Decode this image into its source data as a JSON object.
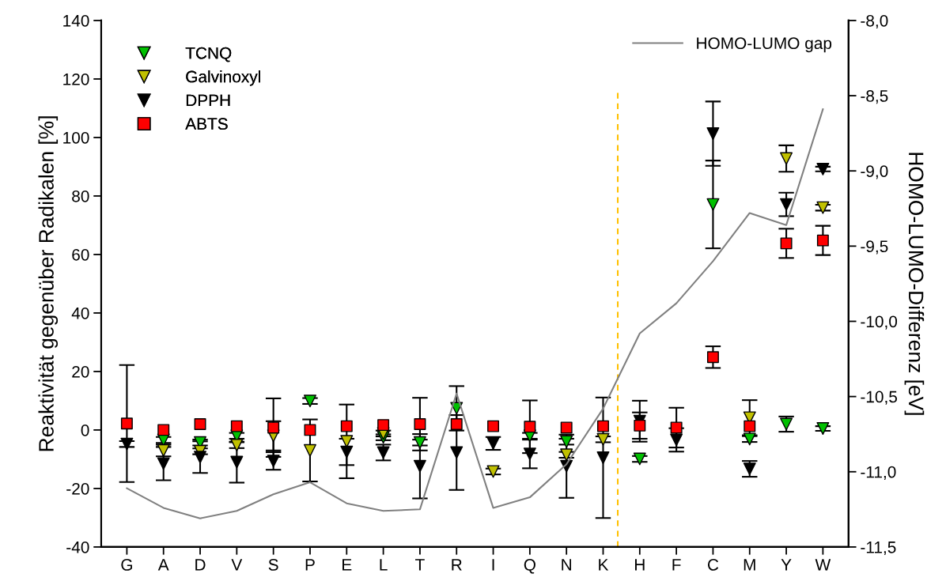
{
  "chart_data": {
    "type": "scatter",
    "ylabel": "Reaktivität gegenüber Radikalen [%]",
    "y2label": "HOMO-LUMO-Differenz [eV]",
    "categories": [
      "G",
      "A",
      "D",
      "V",
      "S",
      "P",
      "E",
      "L",
      "T",
      "R",
      "I",
      "Q",
      "N",
      "K",
      "H",
      "F",
      "C",
      "M",
      "Y",
      "W"
    ],
    "series": [
      {
        "name": "TCNQ",
        "marker": "triangle",
        "color": "#00c000",
        "values": [
          null,
          -3.4,
          -4.3,
          -2,
          null,
          9.9,
          null,
          -2.5,
          -4.3,
          7.4,
          null,
          -2,
          -4,
          null,
          -9.9,
          null,
          77.1,
          -3.1,
          2,
          0.5
        ],
        "errors": [
          null,
          1,
          1,
          1,
          null,
          1,
          null,
          1,
          1,
          7.6,
          null,
          1,
          1,
          null,
          1,
          null,
          15,
          1,
          2.6,
          0.8
        ]
      },
      {
        "name": "Galvinoxyl",
        "marker": "triangle",
        "color": "#c0c000",
        "values": [
          null,
          -7,
          -7.3,
          -5.2,
          -2,
          -7,
          -3.9,
          -1.2,
          null,
          null,
          -14.2,
          null,
          -8.5,
          -3.2,
          null,
          null,
          null,
          4.2,
          92.8,
          76
        ],
        "errors": [
          null,
          2,
          1,
          1,
          5,
          10.6,
          12.6,
          1,
          null,
          null,
          1,
          null,
          1,
          1,
          null,
          null,
          null,
          6,
          4.5,
          1
        ]
      },
      {
        "name": "DPPH",
        "marker": "triangle",
        "color": "#000000",
        "values": [
          -4.8,
          -11.5,
          -9.3,
          -11,
          -10.6,
          null,
          -7.5,
          -7.7,
          -12.4,
          -7.7,
          -4.6,
          -8.2,
          -12.4,
          -9.5,
          3,
          -3.4,
          101.3,
          -13.3,
          77.1,
          89.2
        ],
        "errors": [
          1,
          5.7,
          5.4,
          7,
          3,
          null,
          4.5,
          2.7,
          11,
          12.8,
          2.2,
          4.9,
          10.8,
          20.6,
          7,
          4,
          11,
          2.7,
          4,
          0.8
        ]
      },
      {
        "name": "ABTS",
        "marker": "square",
        "color": "#ff0000",
        "values": [
          2.2,
          0,
          2,
          1.3,
          0.8,
          0,
          1.3,
          1.7,
          2,
          2,
          1.3,
          1.1,
          0.8,
          1.3,
          1.5,
          0.8,
          24.9,
          1.3,
          63.8,
          64.8
        ],
        "errors": [
          20,
          null,
          null,
          null,
          10,
          null,
          null,
          null,
          9,
          null,
          null,
          9,
          null,
          null,
          4.5,
          6.8,
          3.7,
          null,
          5,
          5
        ]
      },
      {
        "name": "HOMO-LUMO gap",
        "type": "line",
        "axis": "y2",
        "marker": "none",
        "color": "#808080",
        "values": [
          -11.11,
          -11.24,
          -11.31,
          -11.26,
          -11.15,
          -11.07,
          -11.21,
          -11.26,
          -11.25,
          -10.48,
          -11.24,
          -11.17,
          -10.95,
          -10.58,
          -10.08,
          -9.88,
          -9.6,
          -9.28,
          -9.36,
          -8.59
        ]
      }
    ],
    "ylim": [
      -40,
      140
    ],
    "yticks": [
      -40,
      -20,
      0,
      20,
      40,
      60,
      80,
      100,
      120,
      140
    ],
    "y2lim": [
      -11.5,
      -8
    ],
    "y2ticks": [
      {
        "value": -11.5,
        "label": "-11,5"
      },
      {
        "value": -11,
        "label": "-11,0"
      },
      {
        "value": -10.5,
        "label": "-10,5"
      },
      {
        "value": -10,
        "label": "-10,0"
      },
      {
        "value": -9.5,
        "label": "-9,5"
      },
      {
        "value": -9,
        "label": "-9,0"
      },
      {
        "value": -8.5,
        "label": "-8,5"
      },
      {
        "value": -8,
        "label": "-8,0"
      }
    ],
    "grid": false,
    "legend": "top left"
  }
}
